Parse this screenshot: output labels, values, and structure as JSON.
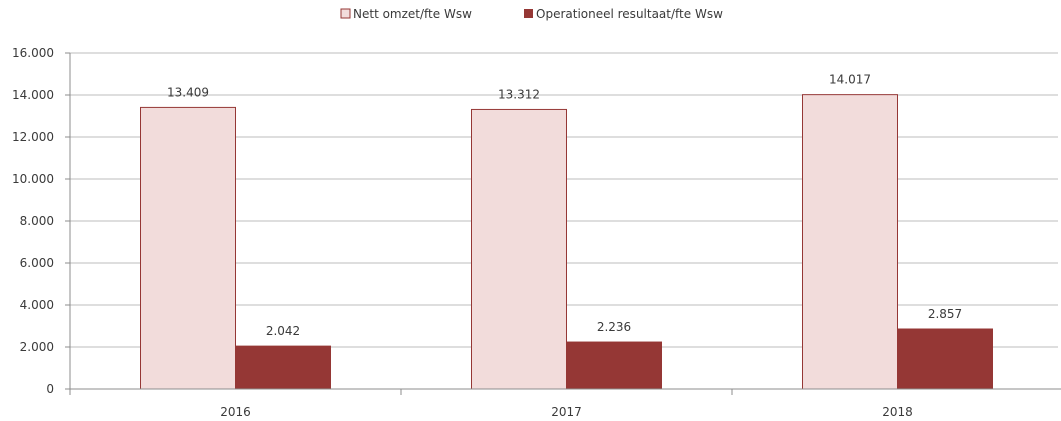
{
  "chart_data": {
    "type": "bar",
    "categories": [
      "2016",
      "2017",
      "2018"
    ],
    "series": [
      {
        "name": "Nett omzet/fte Wsw",
        "values": [
          13409,
          13312,
          14017
        ],
        "labels": [
          "13.409",
          "13.312",
          "14.017"
        ],
        "fill": "#f2dcdb",
        "stroke": "#953735"
      },
      {
        "name": "Operationeel resultaat/fte Wsw",
        "values": [
          2042,
          2236,
          2857
        ],
        "labels": [
          "2.042",
          "2.236",
          "2.857"
        ],
        "fill": "#953735",
        "stroke": "#953735"
      }
    ],
    "ylim": [
      0,
      16000
    ],
    "yticks": [
      0,
      2000,
      4000,
      6000,
      8000,
      10000,
      12000,
      14000,
      16000
    ],
    "ytick_labels": [
      "0",
      "2.000",
      "4.000",
      "6.000",
      "8.000",
      "10.000",
      "12.000",
      "14.000",
      "16.000"
    ],
    "grid": true,
    "legend_position": "top-center",
    "title": "",
    "xlabel": "",
    "ylabel": ""
  }
}
